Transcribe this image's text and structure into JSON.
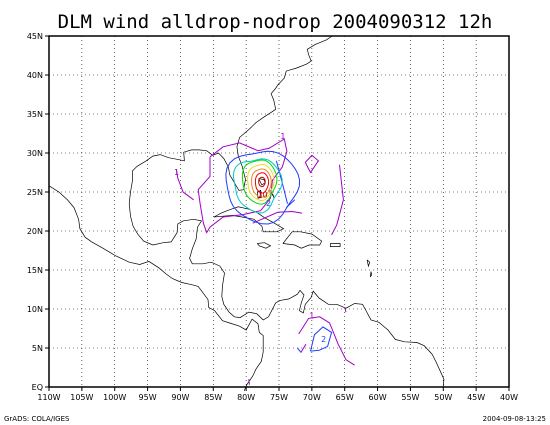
{
  "title": "DLM wind alldrop-nodrop 2004090312 12h",
  "footer_left": "GrADS: COLA/IGES",
  "footer_right": "2004-09-08-13:25",
  "lon_labels": [
    "110W",
    "105W",
    "100W",
    "95W",
    "90W",
    "85W",
    "80W",
    "75W",
    "70W",
    "65W",
    "60W",
    "55W",
    "50W",
    "45W",
    "40W"
  ],
  "lat_labels": [
    "EQ",
    "5N",
    "10N",
    "15N",
    "20N",
    "25N",
    "30N",
    "35N",
    "40N",
    "45N"
  ],
  "contour_labels": [
    {
      "text": "1",
      "lon": -90.6,
      "lat": 27.2,
      "color": "#a000c8"
    },
    {
      "text": "1",
      "lon": -74.4,
      "lat": 31.8,
      "color": "#a000c8"
    },
    {
      "text": "2",
      "lon": -76.6,
      "lat": 23.2,
      "color": "#1e3cff"
    },
    {
      "text": "2",
      "lon": -68.2,
      "lat": 5.8,
      "color": "#1e3cff"
    },
    {
      "text": "10",
      "lon": -77.5,
      "lat": 24.3,
      "color": "#c80000"
    },
    {
      "text": "1",
      "lon": -70.0,
      "lat": 8.8,
      "color": "#a000c8"
    }
  ],
  "colors": {
    "purple": "#a000c8",
    "blue": "#1e3cff",
    "cyan": "#00c8c8",
    "green": "#00dc00",
    "yellow": "#e6dc32",
    "orange": "#f08228",
    "red": "#f00000",
    "darkred": "#c80000",
    "coast": "#000000",
    "grid": "#000000"
  }
}
